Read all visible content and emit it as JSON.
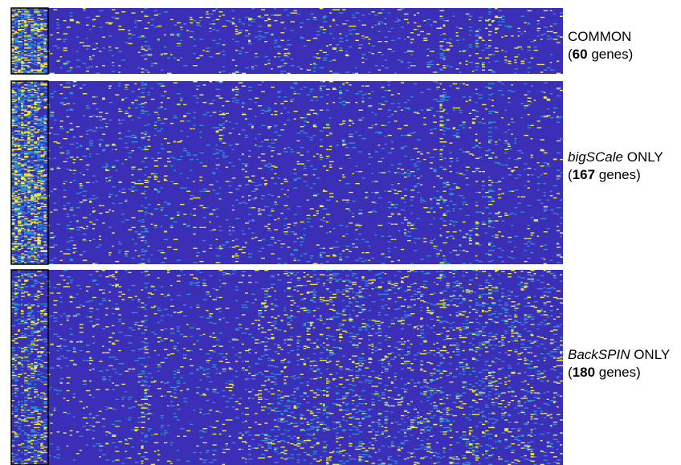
{
  "chart_data": {
    "type": "heatmap",
    "title": "",
    "xlabel": "",
    "ylabel": "",
    "colormap": {
      "low": "#3b2fb8",
      "mid": "#2f8fd8",
      "high": "#f3f03a"
    },
    "highlight_box_color": "#000000",
    "panels": [
      {
        "name": "COMMON",
        "label_prefix": "COMMON",
        "count_open": "(",
        "count": "60",
        "count_suffix": " genes)",
        "genes": 60
      },
      {
        "name": "bigSCale ONLY",
        "label_italic": "bigSCale",
        "label_rest": " ONLY",
        "count_open": "(",
        "count": "167",
        "count_suffix": " genes)",
        "genes": 167
      },
      {
        "name": "BackSPIN ONLY",
        "label_italic": "BackSPIN",
        "label_rest": " ONLY",
        "count_open": "(",
        "count": "180",
        "count_suffix": " genes)",
        "genes": 180
      }
    ]
  }
}
